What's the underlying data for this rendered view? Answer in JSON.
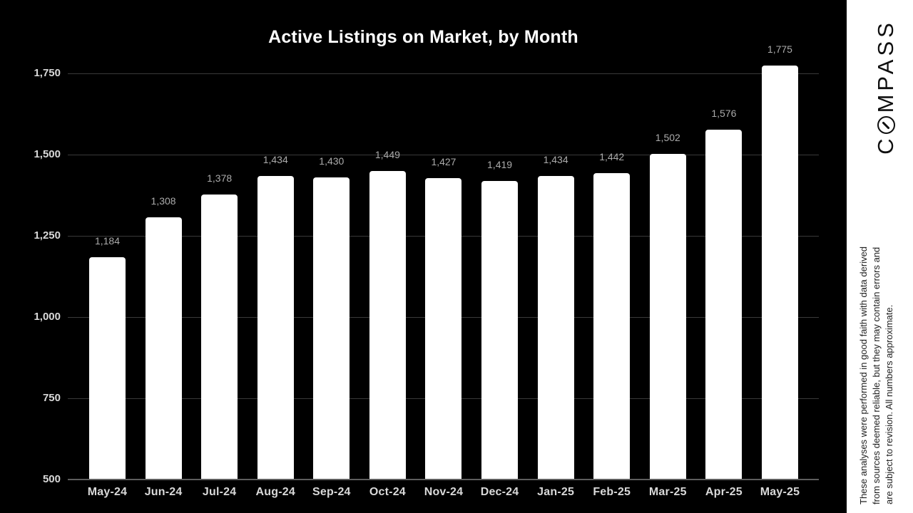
{
  "chart_data": {
    "type": "bar",
    "title": "Active Listings on Market, by Month",
    "categories": [
      "May-24",
      "Jun-24",
      "Jul-24",
      "Aug-24",
      "Sep-24",
      "Oct-24",
      "Nov-24",
      "Dec-24",
      "Jan-25",
      "Feb-25",
      "Mar-25",
      "Apr-25",
      "May-25"
    ],
    "values": [
      1184,
      1308,
      1378,
      1434,
      1430,
      1449,
      1427,
      1419,
      1434,
      1442,
      1502,
      1576,
      1775
    ],
    "value_labels": [
      "1,184",
      "1,308",
      "1,378",
      "1,434",
      "1,430",
      "1,449",
      "1,427",
      "1,419",
      "1,434",
      "1,442",
      "1,502",
      "1,576",
      "1,775"
    ],
    "xlabel": "",
    "ylabel": "",
    "ylim": [
      500,
      1750
    ],
    "yticks": [
      {
        "value": 500,
        "label": "500"
      },
      {
        "value": 750,
        "label": "750"
      },
      {
        "value": 1000,
        "label": "1,000"
      },
      {
        "value": 1250,
        "label": "1,250"
      },
      {
        "value": 1500,
        "label": "1,500"
      },
      {
        "value": 1750,
        "label": "1,750"
      }
    ],
    "grid": true,
    "legend": "none",
    "bar_color": "#ffffff",
    "value_label_color": "#ababab",
    "axis_label_color": "#d9d9d9",
    "gridline_color": "#3a3a3a",
    "axisline_color": "#5e5e5e",
    "background": "#000000"
  },
  "sidebar": {
    "brand": "COMPASS",
    "brand_prefix": "C",
    "brand_suffix": "MPASS",
    "disclaimer_lines": [
      "These analyses were performed in good faith with data derived",
      "from sources deemed reliable, but they may contain errors and",
      "are subject to revision. All numbers approximate."
    ]
  }
}
